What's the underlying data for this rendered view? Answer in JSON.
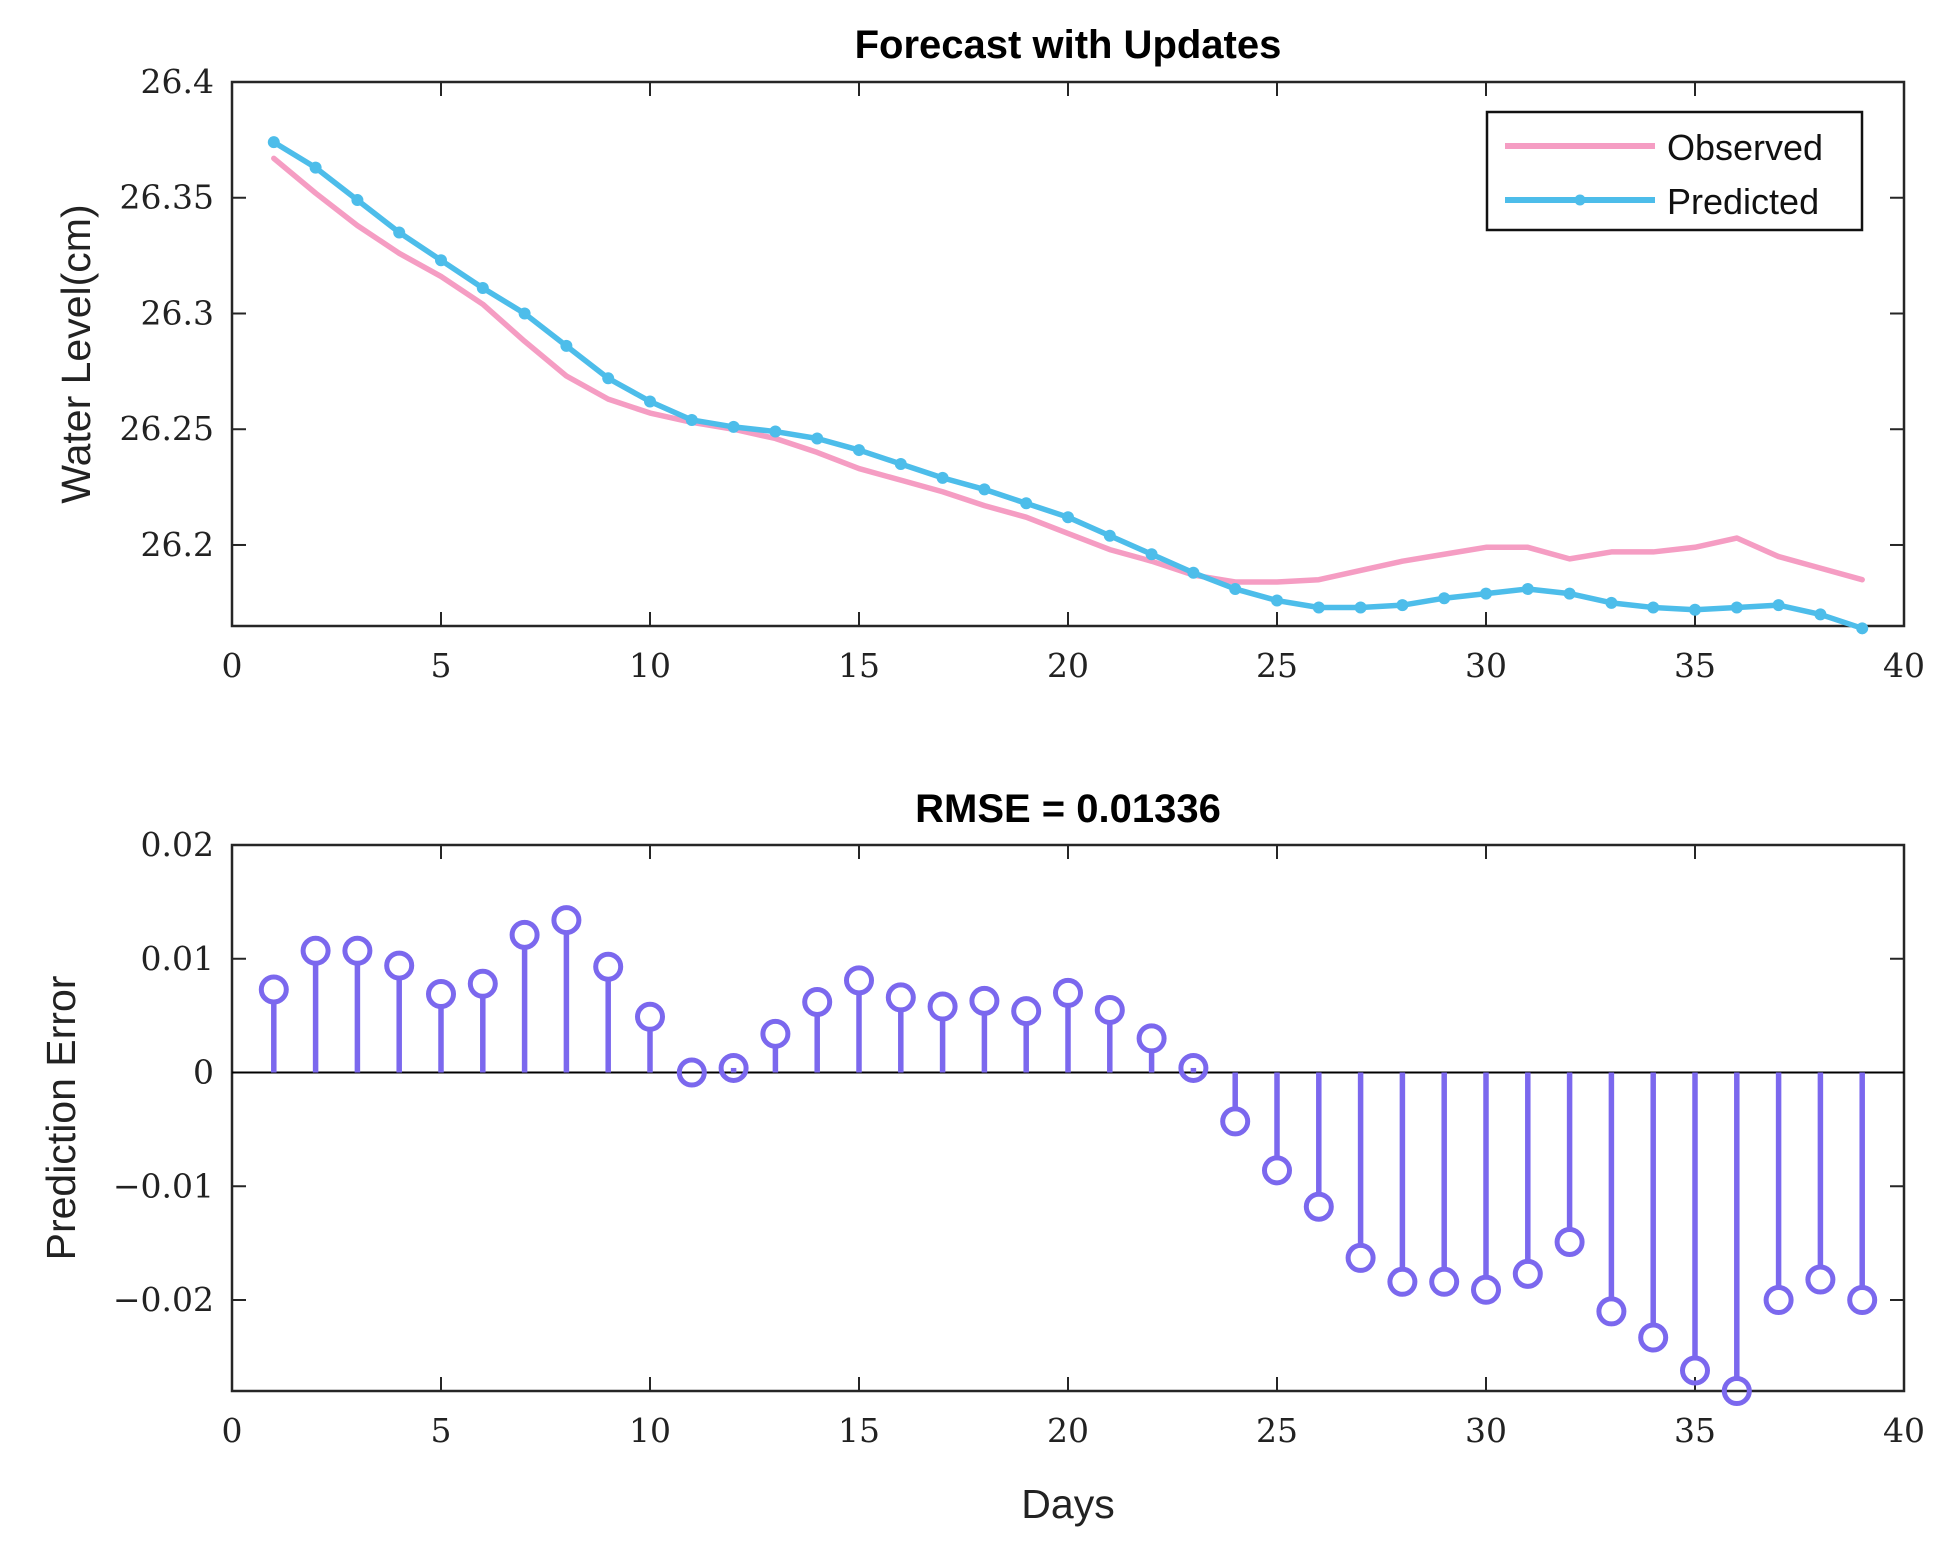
{
  "chart_data": [
    {
      "type": "line",
      "title": "Forecast with Updates",
      "xlabel": "",
      "ylabel": "Water Level(cm)",
      "xlim": [
        0,
        40
      ],
      "ylim": [
        26.165,
        26.4
      ],
      "xticks": [
        0,
        5,
        10,
        15,
        20,
        25,
        30,
        35,
        40
      ],
      "xtick_labels": [
        "0",
        "5",
        "10",
        "15",
        "20",
        "25",
        "30",
        "35",
        "40"
      ],
      "yticks": [
        26.2,
        26.25,
        26.3,
        26.35,
        26.4
      ],
      "ytick_labels": [
        "26.2",
        "26.25",
        "26.3",
        "26.35",
        "26.4"
      ],
      "legend_position": "top-right",
      "x": [
        1,
        2,
        3,
        4,
        5,
        6,
        7,
        8,
        9,
        10,
        11,
        12,
        13,
        14,
        15,
        16,
        17,
        18,
        19,
        20,
        21,
        22,
        23,
        24,
        25,
        26,
        27,
        28,
        29,
        30,
        31,
        32,
        33,
        34,
        35,
        36,
        37,
        38,
        39
      ],
      "series": [
        {
          "name": "Observed",
          "color": "#F59DC3",
          "markers": false,
          "values": [
            26.367,
            26.352,
            26.338,
            26.326,
            26.316,
            26.304,
            26.288,
            26.273,
            26.263,
            26.257,
            26.253,
            26.25,
            26.246,
            26.24,
            26.233,
            26.228,
            26.223,
            26.217,
            26.212,
            26.205,
            26.198,
            26.193,
            26.187,
            26.184,
            26.184,
            26.185,
            26.189,
            26.193,
            26.196,
            26.199,
            26.199,
            26.194,
            26.197,
            26.197,
            26.199,
            26.203,
            26.195,
            26.19,
            26.185
          ]
        },
        {
          "name": "Predicted",
          "color": "#4DBDEA",
          "markers": true,
          "values": [
            26.374,
            26.363,
            26.349,
            26.335,
            26.323,
            26.311,
            26.3,
            26.286,
            26.272,
            26.262,
            26.254,
            26.251,
            26.249,
            26.246,
            26.241,
            26.235,
            26.229,
            26.224,
            26.218,
            26.212,
            26.204,
            26.196,
            26.188,
            26.181,
            26.176,
            26.173,
            26.173,
            26.174,
            26.177,
            26.179,
            26.181,
            26.179,
            26.175,
            26.173,
            26.172,
            26.173,
            26.174,
            26.17,
            26.164
          ]
        }
      ]
    },
    {
      "type": "stem",
      "title": "RMSE = 0.01336",
      "xlabel": "Days",
      "ylabel": "Prediction Error",
      "xlim": [
        0,
        40
      ],
      "ylim": [
        -0.028,
        0.02
      ],
      "xticks": [
        0,
        5,
        10,
        15,
        20,
        25,
        30,
        35,
        40
      ],
      "xtick_labels": [
        "0",
        "5",
        "10",
        "15",
        "20",
        "25",
        "30",
        "35",
        "40"
      ],
      "yticks": [
        -0.02,
        -0.01,
        0,
        0.01,
        0.02
      ],
      "ytick_labels": [
        "−0.02",
        "−0.01",
        "0",
        "0.01",
        "0.02"
      ],
      "color": "#7B68EE",
      "x": [
        1,
        2,
        3,
        4,
        5,
        6,
        7,
        8,
        9,
        10,
        11,
        12,
        13,
        14,
        15,
        16,
        17,
        18,
        19,
        20,
        21,
        22,
        23,
        24,
        25,
        26,
        27,
        28,
        29,
        30,
        31,
        32,
        33,
        34,
        35,
        36,
        37,
        38,
        39
      ],
      "values": [
        0.0073,
        0.0107,
        0.0107,
        0.0094,
        0.0069,
        0.0078,
        0.0121,
        0.0134,
        0.0093,
        0.0049,
        0.0,
        0.0004,
        0.0034,
        0.0062,
        0.0081,
        0.0066,
        0.0058,
        0.0063,
        0.0054,
        0.007,
        0.0055,
        0.003,
        0.0004,
        -0.0043,
        -0.0086,
        -0.0118,
        -0.0163,
        -0.0184,
        -0.0184,
        -0.0191,
        -0.0177,
        -0.0149,
        -0.021,
        -0.0233,
        -0.0262,
        -0.028,
        -0.02,
        -0.0182,
        -0.02
      ]
    }
  ]
}
